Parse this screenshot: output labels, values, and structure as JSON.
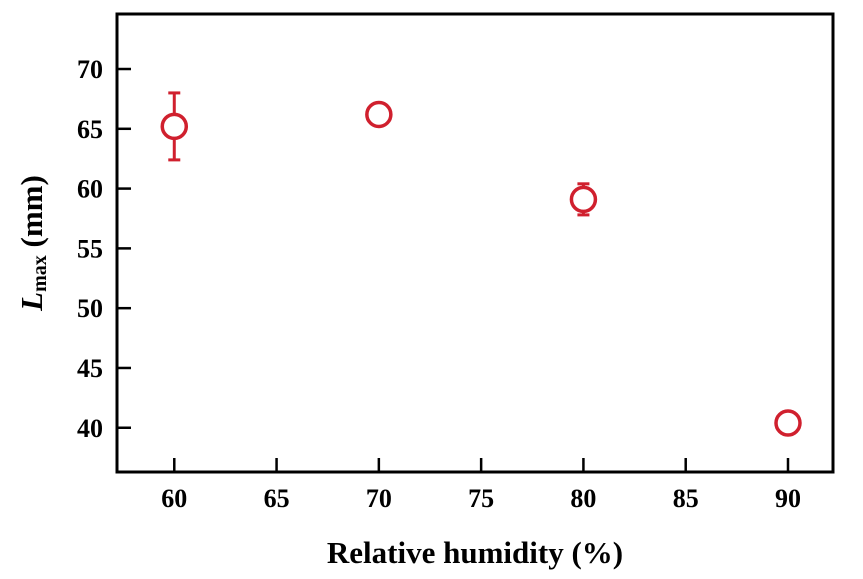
{
  "chart_data": {
    "type": "scatter",
    "title": "",
    "xlabel": "Relative humidity (%)",
    "ylabel": {
      "main": "L",
      "subscript": "max",
      "unit": " (mm)"
    },
    "xlim": [
      57.2,
      92.2
    ],
    "ylim": [
      36.3,
      74.6
    ],
    "x_ticks": [
      60,
      65,
      70,
      75,
      80,
      85,
      90
    ],
    "y_ticks": [
      40,
      45,
      50,
      55,
      60,
      65,
      70
    ],
    "grid": false,
    "series": [
      {
        "marker": "open-circle",
        "color": "#d0202e",
        "points": [
          {
            "x": 60,
            "y": 65.2,
            "err": 2.8
          },
          {
            "x": 70,
            "y": 66.2,
            "err": 0.8
          },
          {
            "x": 80,
            "y": 59.1,
            "err": 1.3
          },
          {
            "x": 90,
            "y": 40.4,
            "err": 0.8
          }
        ]
      }
    ]
  }
}
